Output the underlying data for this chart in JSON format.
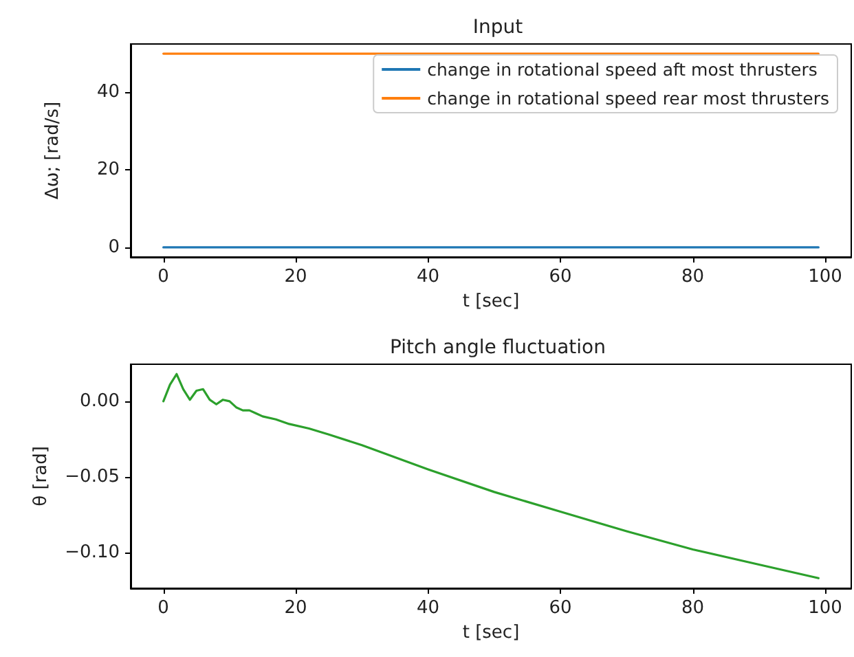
{
  "chart_data": [
    {
      "type": "line",
      "title": "Input",
      "xlabel": "t [sec]",
      "ylabel": "Δω; [rad/s]",
      "x": [
        0,
        99
      ],
      "series": [
        {
          "name": "change in rotational speed aft most thrusters",
          "color": "#1f77b4",
          "values": [
            0,
            0
          ]
        },
        {
          "name": "change in rotational speed rear most thrusters",
          "color": "#ff7f0e",
          "values": [
            50,
            50
          ]
        }
      ],
      "xlim": [
        -4.95,
        103.95
      ],
      "xticks": [
        0,
        20,
        40,
        60,
        80,
        100
      ],
      "ylim": [
        -2.5,
        52.5
      ],
      "yticks": [
        0,
        20,
        40
      ],
      "grid": false,
      "legend": "top right",
      "marker": "none",
      "line_style": "solid"
    },
    {
      "type": "line",
      "title": "Pitch angle fluctuation",
      "xlabel": "t [sec]",
      "ylabel": "θ [rad]",
      "x": [
        0,
        1,
        2,
        3,
        4,
        5,
        6,
        7,
        8,
        9,
        10,
        11,
        12,
        13,
        14,
        15,
        17,
        19,
        22,
        25,
        30,
        40,
        50,
        60,
        70,
        80,
        90,
        99
      ],
      "series": [
        {
          "color": "#2ca02c",
          "values": [
            0,
            0.011,
            0.018,
            0.008,
            0.001,
            0.007,
            0.008,
            0.001,
            -0.002,
            0.001,
            0,
            -0.004,
            -0.006,
            -0.006,
            -0.008,
            -0.01,
            -0.012,
            -0.015,
            -0.018,
            -0.022,
            -0.029,
            -0.045,
            -0.06,
            -0.073,
            -0.086,
            -0.098,
            -0.108,
            -0.117
          ]
        }
      ],
      "xlim": [
        -4.95,
        103.95
      ],
      "xticks": [
        0,
        20,
        40,
        60,
        80,
        100
      ],
      "ylim": [
        -0.1237,
        0.0245
      ],
      "yticks": [
        {
          "value": 0,
          "label": "0.00"
        },
        {
          "value": -0.05,
          "label": "−0.05"
        },
        {
          "value": -0.1,
          "label": "−0.10"
        }
      ],
      "grid": false,
      "legend": false,
      "marker": "none",
      "line_style": "solid"
    }
  ]
}
